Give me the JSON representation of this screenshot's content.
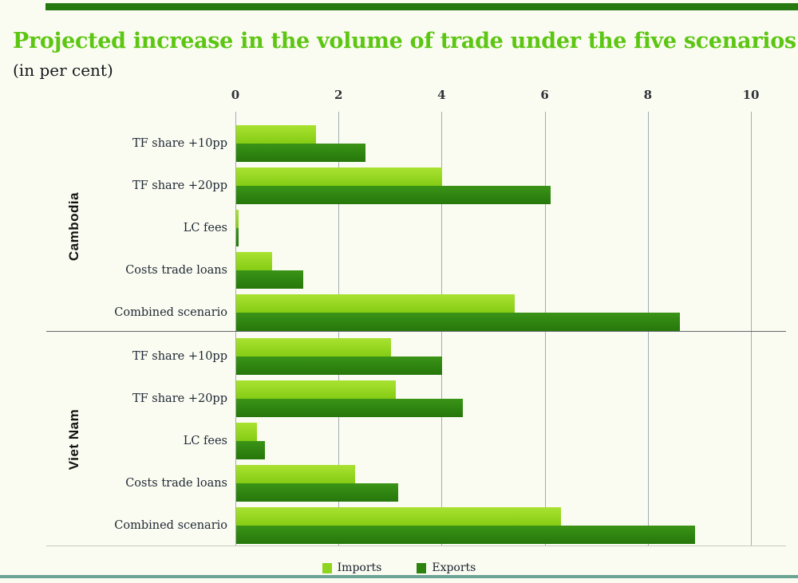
{
  "header": {
    "title": "Projected increase in the volume of trade under the five scenarios",
    "subtitle": "(in per cent)"
  },
  "colors": {
    "title_green": "#5cc613",
    "imports_bar": "#8fd41f",
    "exports_bar": "#2e820f",
    "gridline": "#a4abb7",
    "top_strip": "#26790e",
    "bottom_rule": "#6ba395"
  },
  "legend": {
    "items": [
      {
        "label": "Imports",
        "color": "#8fd41f"
      },
      {
        "label": "Exports",
        "color": "#2e820f"
      }
    ]
  },
  "chart_data": {
    "type": "bar",
    "orientation": "horizontal",
    "title": "Projected increase in the volume of trade under the five scenarios",
    "subtitle": "(in per cent)",
    "xlabel": "",
    "ylabel": "",
    "x_axis": {
      "min": 0,
      "max": 10,
      "ticks": [
        0,
        2,
        4,
        6,
        8,
        10
      ]
    },
    "grid": true,
    "legend_position": "bottom",
    "groups": [
      {
        "name": "Cambodia",
        "categories": [
          "TF share +10pp",
          "TF share +20pp",
          "LC fees",
          "Costs trade loans",
          "Combined scenario"
        ],
        "series": [
          {
            "name": "Imports",
            "values": [
              1.55,
              4.0,
              0.05,
              0.7,
              5.4
            ]
          },
          {
            "name": "Exports",
            "values": [
              2.5,
              6.1,
              0.05,
              1.3,
              8.6
            ]
          }
        ]
      },
      {
        "name": "Viet Nam",
        "categories": [
          "TF share +10pp",
          "TF share +20pp",
          "LC fees",
          "Costs trade loans",
          "Combined scenario"
        ],
        "series": [
          {
            "name": "Imports",
            "values": [
              3.0,
              3.1,
              0.4,
              2.3,
              6.3
            ]
          },
          {
            "name": "Exports",
            "values": [
              4.0,
              4.4,
              0.55,
              3.15,
              8.9
            ]
          }
        ]
      }
    ]
  }
}
